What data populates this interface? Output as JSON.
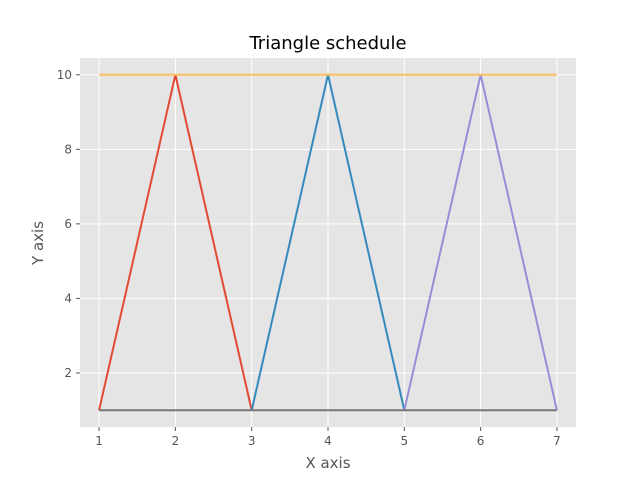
{
  "chart_data": {
    "type": "line",
    "title": "Triangle schedule",
    "xlabel": "X axis",
    "ylabel": "Y axis",
    "xlim": [
      0.75,
      7.25
    ],
    "ylim": [
      0.55,
      10.45
    ],
    "xticks": [
      1,
      2,
      3,
      4,
      5,
      6,
      7
    ],
    "yticks": [
      2,
      4,
      6,
      8,
      10
    ],
    "grid": true,
    "series": [
      {
        "x": [
          1,
          2,
          3
        ],
        "y": [
          1,
          10,
          1
        ],
        "color": "#E24A33"
      },
      {
        "x": [
          3,
          4,
          5
        ],
        "y": [
          1,
          10,
          1
        ],
        "color": "#348ABD"
      },
      {
        "x": [
          5,
          6,
          7
        ],
        "y": [
          1,
          10,
          1
        ],
        "color": "#988ED5"
      },
      {
        "x": [
          1,
          7
        ],
        "y": [
          10,
          10
        ],
        "color": "#FBC15E"
      },
      {
        "x": [
          1,
          7
        ],
        "y": [
          1,
          1
        ],
        "color": "#777777"
      }
    ]
  },
  "colors": {
    "plot_background": "#E5E5E5",
    "grid": "#FFFFFF",
    "text": "#555555"
  }
}
